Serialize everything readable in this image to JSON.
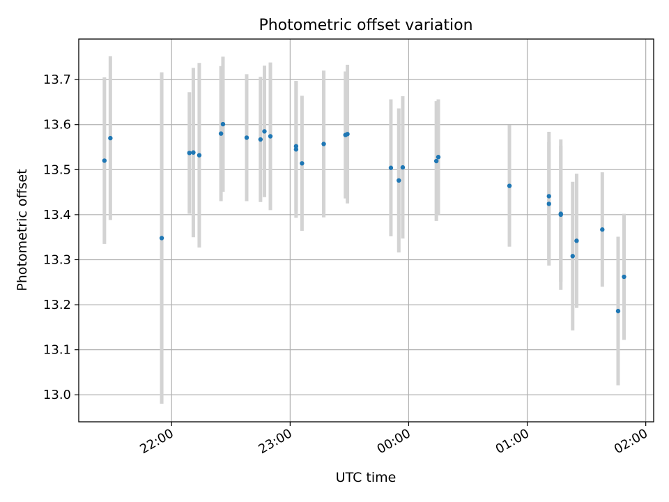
{
  "chart_data": {
    "type": "scatter",
    "title": "Photometric offset variation",
    "xlabel": "UTC time",
    "ylabel": "Photometric offset",
    "xlim": [
      "21:13",
      "02:04"
    ],
    "ylim": [
      12.94,
      13.79
    ],
    "x_ticks": [
      "22:00",
      "23:00",
      "00:00",
      "01:00",
      "02:00"
    ],
    "y_ticks": [
      13.0,
      13.1,
      13.2,
      13.3,
      13.4,
      13.5,
      13.6,
      13.7
    ],
    "grid": true,
    "marker_color": "#1f77b4",
    "errorbar_color": "#d3d3d3",
    "series": [
      {
        "points": [
          {
            "x": "21:26",
            "y": 13.52,
            "err": 0.185
          },
          {
            "x": "21:29",
            "y": 13.57,
            "err": 0.182
          },
          {
            "x": "21:55",
            "y": 13.348,
            "err": 0.368
          },
          {
            "x": "22:09",
            "y": 13.537,
            "err": 0.135
          },
          {
            "x": "22:11",
            "y": 13.538,
            "err": 0.188
          },
          {
            "x": "22:14",
            "y": 13.532,
            "err": 0.205
          },
          {
            "x": "22:25",
            "y": 13.58,
            "err": 0.15
          },
          {
            "x": "22:26",
            "y": 13.601,
            "err": 0.15
          },
          {
            "x": "22:38",
            "y": 13.571,
            "err": 0.141
          },
          {
            "x": "22:45",
            "y": 13.567,
            "err": 0.139
          },
          {
            "x": "22:47",
            "y": 13.585,
            "err": 0.146
          },
          {
            "x": "22:50",
            "y": 13.574,
            "err": 0.164
          },
          {
            "x": "23:03",
            "y": 13.552,
            "err": 0.145
          },
          {
            "x": "23:03",
            "y": 13.545,
            "err": 0.152
          },
          {
            "x": "23:06",
            "y": 13.514,
            "err": 0.15
          },
          {
            "x": "23:17",
            "y": 13.557,
            "err": 0.163
          },
          {
            "x": "23:28",
            "y": 13.577,
            "err": 0.141
          },
          {
            "x": "23:29",
            "y": 13.579,
            "err": 0.154
          },
          {
            "x": "23:51",
            "y": 13.504,
            "err": 0.152
          },
          {
            "x": "23:55",
            "y": 13.476,
            "err": 0.16
          },
          {
            "x": "23:57",
            "y": 13.505,
            "err": 0.158
          },
          {
            "x": "00:14",
            "y": 13.519,
            "err": 0.133
          },
          {
            "x": "00:15",
            "y": 13.528,
            "err": 0.128
          },
          {
            "x": "00:51",
            "y": 13.464,
            "err": 0.135
          },
          {
            "x": "01:11",
            "y": 13.441,
            "err": 0.143
          },
          {
            "x": "01:11",
            "y": 13.424,
            "err": 0.137
          },
          {
            "x": "01:17",
            "y": 13.4,
            "err": 0.167
          },
          {
            "x": "01:17",
            "y": 13.402,
            "err": 0.151
          },
          {
            "x": "01:23",
            "y": 13.308,
            "err": 0.165
          },
          {
            "x": "01:25",
            "y": 13.342,
            "err": 0.149
          },
          {
            "x": "01:38",
            "y": 13.367,
            "err": 0.127
          },
          {
            "x": "01:46",
            "y": 13.186,
            "err": 0.165
          },
          {
            "x": "01:49",
            "y": 13.262,
            "err": 0.14
          }
        ]
      }
    ]
  }
}
